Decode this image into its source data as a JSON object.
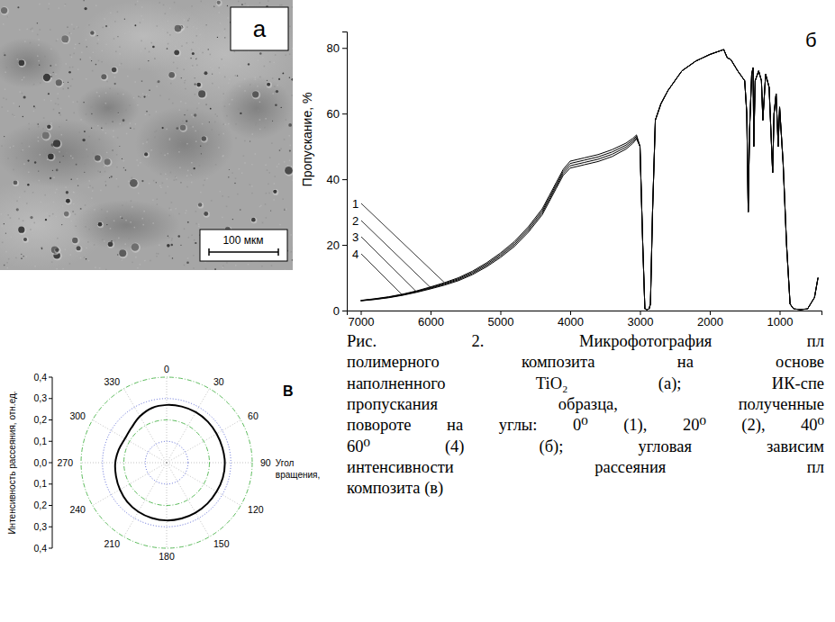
{
  "micrograph": {
    "panel_label": "а",
    "scale_bar": "100 мкм"
  },
  "caption": [
    "Рис. 2. Микрофотография пл",
    "полимерного композита на основе",
    "наполненного TiO₂ (а); ИК-спе",
    "пропускания образца, полученные",
    "повороте на углы: 0⁰ (1), 20⁰ (2), 40⁰",
    "60⁰ (4) (б); угловая зависим",
    "интенсивности рассеяния пл",
    "композита (в)"
  ],
  "chart_data": [
    {
      "type": "line",
      "panel_label": "б",
      "y_label": "Пропускание, %",
      "x": [
        7000,
        6800,
        6600,
        6400,
        6200,
        6000,
        5800,
        5600,
        5400,
        5200,
        5000,
        4800,
        4600,
        4400,
        4300,
        4200,
        4100,
        4000,
        3800,
        3600,
        3400,
        3200,
        3100,
        3050,
        3000,
        2960,
        2930,
        2900,
        2870,
        2850,
        2820,
        2780,
        2700,
        2600,
        2400,
        2200,
        2000,
        1800,
        1750,
        1700,
        1600,
        1500,
        1470,
        1450,
        1430,
        1400,
        1380,
        1370,
        1350,
        1300,
        1260,
        1240,
        1200,
        1150,
        1100,
        1080,
        1050,
        1020,
        1000,
        950,
        900,
        850,
        800,
        700,
        600,
        500,
        450
      ],
      "series": [
        {
          "name": "1",
          "color": "#000000",
          "line_style": "solid",
          "values": [
            3.1,
            3.6,
            4.2,
            5.0,
            6.0,
            7.2,
            8.5,
            10.0,
            12.0,
            14.5,
            17.5,
            21.0,
            25.5,
            31.0,
            35.0,
            39.0,
            43.0,
            45.5,
            46.5,
            47.5,
            49.0,
            51.0,
            52.5,
            53.5,
            50,
            20,
            0.5,
            0.3,
            0.5,
            2,
            30,
            58,
            63,
            67,
            73,
            76,
            78,
            79.5,
            77,
            76.5,
            73,
            70,
            60,
            30,
            55,
            72,
            74,
            50,
            70,
            73,
            70,
            58,
            72,
            68,
            42,
            60,
            66,
            50,
            62,
            45,
            20,
            2,
            0.5,
            0.3,
            0.5,
            4,
            10
          ]
        },
        {
          "name": "2",
          "color": "#000000",
          "line_style": "solid",
          "values": [
            3.05,
            3.52,
            4.1,
            4.88,
            5.85,
            7.0,
            8.25,
            9.7,
            11.65,
            14.1,
            17.05,
            20.5,
            24.95,
            30.4,
            34.4,
            38.4,
            42.4,
            44.8,
            45.8,
            46.8,
            48.3,
            50.4,
            52.0,
            53.1,
            50,
            20,
            0.5,
            0.3,
            0.5,
            2,
            30,
            58,
            63,
            67,
            73,
            76,
            78,
            79.5,
            77,
            76.5,
            73,
            70,
            60,
            30,
            55,
            72,
            74,
            50,
            70,
            73,
            70,
            58,
            72,
            68,
            42,
            60,
            66,
            50,
            62,
            45,
            20,
            2,
            0.5,
            0.3,
            0.5,
            4,
            10
          ]
        },
        {
          "name": "3",
          "color": "#000000",
          "line_style": "solid",
          "values": [
            3.0,
            3.44,
            4.0,
            4.76,
            5.7,
            6.8,
            8.0,
            9.4,
            11.3,
            13.7,
            16.6,
            20.0,
            24.4,
            29.8,
            33.8,
            37.8,
            41.8,
            44.1,
            45.1,
            46.1,
            47.6,
            49.8,
            51.5,
            52.7,
            50,
            20,
            0.5,
            0.3,
            0.5,
            2,
            30,
            58,
            63,
            67,
            73,
            76,
            78,
            79.5,
            77,
            76.5,
            73,
            70,
            60,
            30,
            55,
            72,
            74,
            50,
            70,
            73,
            70,
            58,
            72,
            68,
            42,
            60,
            66,
            50,
            62,
            45,
            20,
            2,
            0.5,
            0.3,
            0.5,
            4,
            10
          ]
        },
        {
          "name": "4",
          "color": "#000000",
          "line_style": "solid",
          "values": [
            2.95,
            3.36,
            3.9,
            4.64,
            5.55,
            6.6,
            7.75,
            9.1,
            10.95,
            13.3,
            16.15,
            19.5,
            23.85,
            29.2,
            33.2,
            37.2,
            41.2,
            43.4,
            44.4,
            45.4,
            46.9,
            49.2,
            51.0,
            52.3,
            50,
            20,
            0.5,
            0.3,
            0.5,
            2,
            30,
            58,
            63,
            67,
            73,
            76,
            78,
            79.5,
            77,
            76.5,
            73,
            70,
            60,
            30,
            55,
            72,
            74,
            50,
            70,
            73,
            70,
            58,
            72,
            68,
            42,
            60,
            66,
            50,
            62,
            45,
            20,
            2,
            0.5,
            0.3,
            0.5,
            4,
            10
          ]
        }
      ],
      "xlim": [
        7200,
        400
      ],
      "ylim": [
        0,
        85
      ],
      "xticks": [
        7000,
        6000,
        5000,
        4000,
        3000,
        2000,
        1000
      ],
      "yticks": [
        0,
        20,
        40,
        60,
        80
      ],
      "grid": false
    },
    {
      "type": "polar",
      "panel_label": "В",
      "y_label": "Интенсивность рассеяния, отн.ед.",
      "x_label": "Угол вращения,",
      "x": [
        0,
        15,
        30,
        45,
        60,
        75,
        90,
        105,
        120,
        135,
        150,
        165,
        180,
        195,
        210,
        225,
        240,
        255,
        270,
        285,
        300,
        315,
        330,
        345
      ],
      "values": [
        0.27,
        0.272,
        0.273,
        0.272,
        0.27,
        0.27,
        0.272,
        0.272,
        0.27,
        0.27,
        0.27,
        0.27,
        0.27,
        0.268,
        0.265,
        0.26,
        0.252,
        0.245,
        0.24,
        0.232,
        0.225,
        0.232,
        0.25,
        0.265
      ],
      "color": "#000000",
      "xlim": [
        0,
        360
      ],
      "ylim": [
        0,
        0.4
      ],
      "xticks": [
        0,
        30,
        60,
        90,
        120,
        150,
        180,
        210,
        240,
        270,
        300,
        330
      ],
      "yticks": [
        {
          "value": 0,
          "label": "0,0"
        },
        {
          "value": 0.1,
          "label": "0,1"
        },
        {
          "value": 0.2,
          "label": "0,2"
        },
        {
          "value": 0.3,
          "label": "0,3"
        },
        {
          "value": 0.4,
          "label": "0,4"
        }
      ],
      "grid": true
    }
  ]
}
